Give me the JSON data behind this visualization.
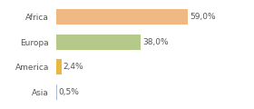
{
  "categories": [
    "Africa",
    "Europa",
    "America",
    "Asia"
  ],
  "values": [
    59.0,
    38.0,
    2.4,
    0.5
  ],
  "labels": [
    "59,0%",
    "38,0%",
    "2,4%",
    "0,5%"
  ],
  "bar_colors": [
    "#f0b882",
    "#b5c98a",
    "#e8b840",
    "#aabbd0"
  ],
  "background_color": "#ffffff",
  "xlim": [
    0,
    75
  ],
  "bar_height": 0.62,
  "label_fontsize": 6.5,
  "ytick_fontsize": 6.5
}
